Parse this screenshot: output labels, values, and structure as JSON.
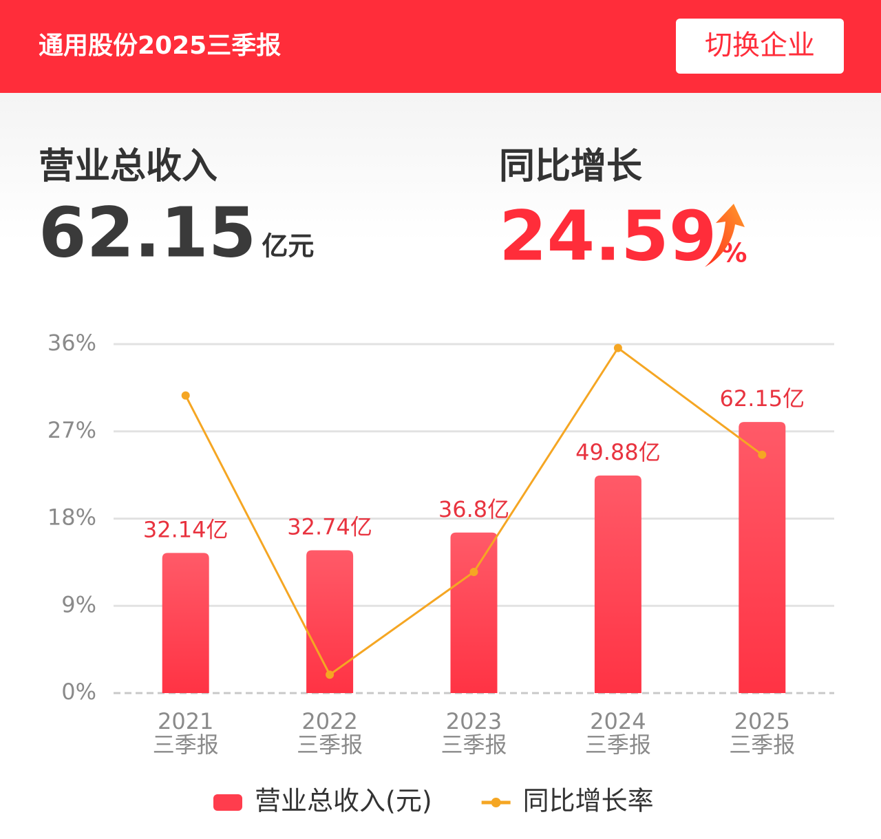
{
  "header": {
    "title": "通用股份2025三季报",
    "button": "切换企业"
  },
  "summary": {
    "revenue": {
      "label": "营业总收入",
      "value": 62.15,
      "unit": "亿元"
    },
    "growth": {
      "label": "同比增长",
      "value": 24.59,
      "unit": "%"
    }
  },
  "chart_data": {
    "type": "bar-line",
    "categories": [
      [
        "2021",
        "三季报"
      ],
      [
        "2022",
        "三季报"
      ],
      [
        "2023",
        "三季报"
      ],
      [
        "2024",
        "三季报"
      ],
      [
        "2025",
        "三季报"
      ]
    ],
    "ylim": [
      0,
      36
    ],
    "yticks": [
      {
        "value": 0,
        "label": "0%"
      },
      {
        "value": 9,
        "label": "9%"
      },
      {
        "value": 18,
        "label": "18%"
      },
      {
        "value": 27,
        "label": "27%"
      },
      {
        "value": 36,
        "label": "36%"
      }
    ],
    "y2lim": [
      0,
      80
    ],
    "grid": true,
    "series": [
      {
        "name": "营业总收入(元)",
        "type": "bar",
        "axis": "y2",
        "color": "#ff3d4d",
        "values": [
          32.14,
          32.74,
          36.8,
          49.88,
          62.15
        ],
        "value_labels": [
          "32.14亿",
          "32.74亿",
          "36.8亿",
          "49.88亿",
          "62.15亿"
        ]
      },
      {
        "name": "同比增长率",
        "type": "line",
        "axis": "y",
        "color": "#f5a623",
        "values": [
          30.7,
          1.9,
          12.5,
          35.6,
          24.59
        ]
      }
    ]
  }
}
